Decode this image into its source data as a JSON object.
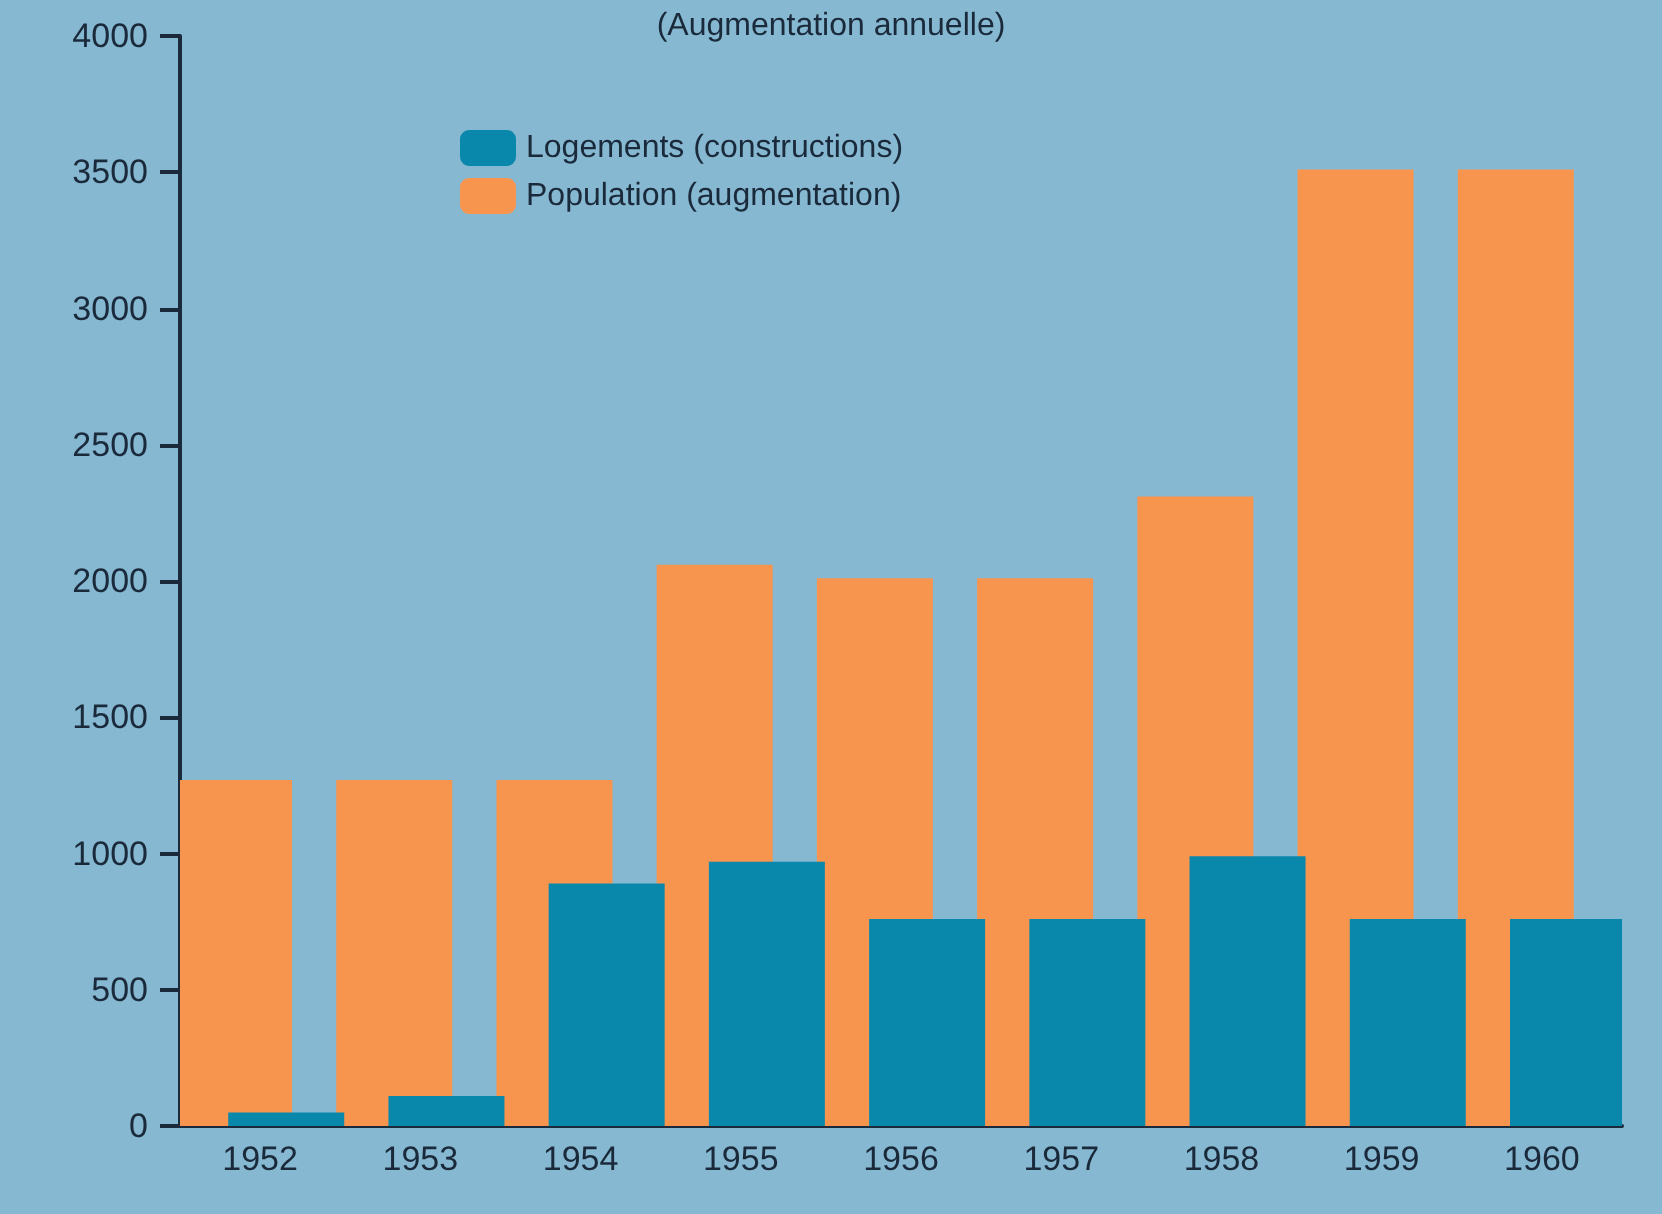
{
  "chart_data": {
    "type": "bar",
    "title": "(Augmentation annuelle)",
    "categories": [
      "1952",
      "1953",
      "1954",
      "1955",
      "1956",
      "1957",
      "1958",
      "1959",
      "1960"
    ],
    "series": [
      {
        "name": "Logements (constructions)",
        "color": "#0a88ac",
        "values": [
          50,
          110,
          890,
          970,
          760,
          760,
          990,
          760,
          760
        ]
      },
      {
        "name": "Population (augmentation)",
        "color": "#f7954f",
        "values": [
          1270,
          1270,
          1270,
          2060,
          2010,
          2010,
          2310,
          3510,
          3510
        ]
      }
    ],
    "ylim": [
      0,
      4000
    ],
    "yticks": [
      0,
      500,
      1000,
      1500,
      2000,
      2500,
      3000,
      3500,
      4000
    ],
    "grid": false,
    "legend": "top left"
  }
}
